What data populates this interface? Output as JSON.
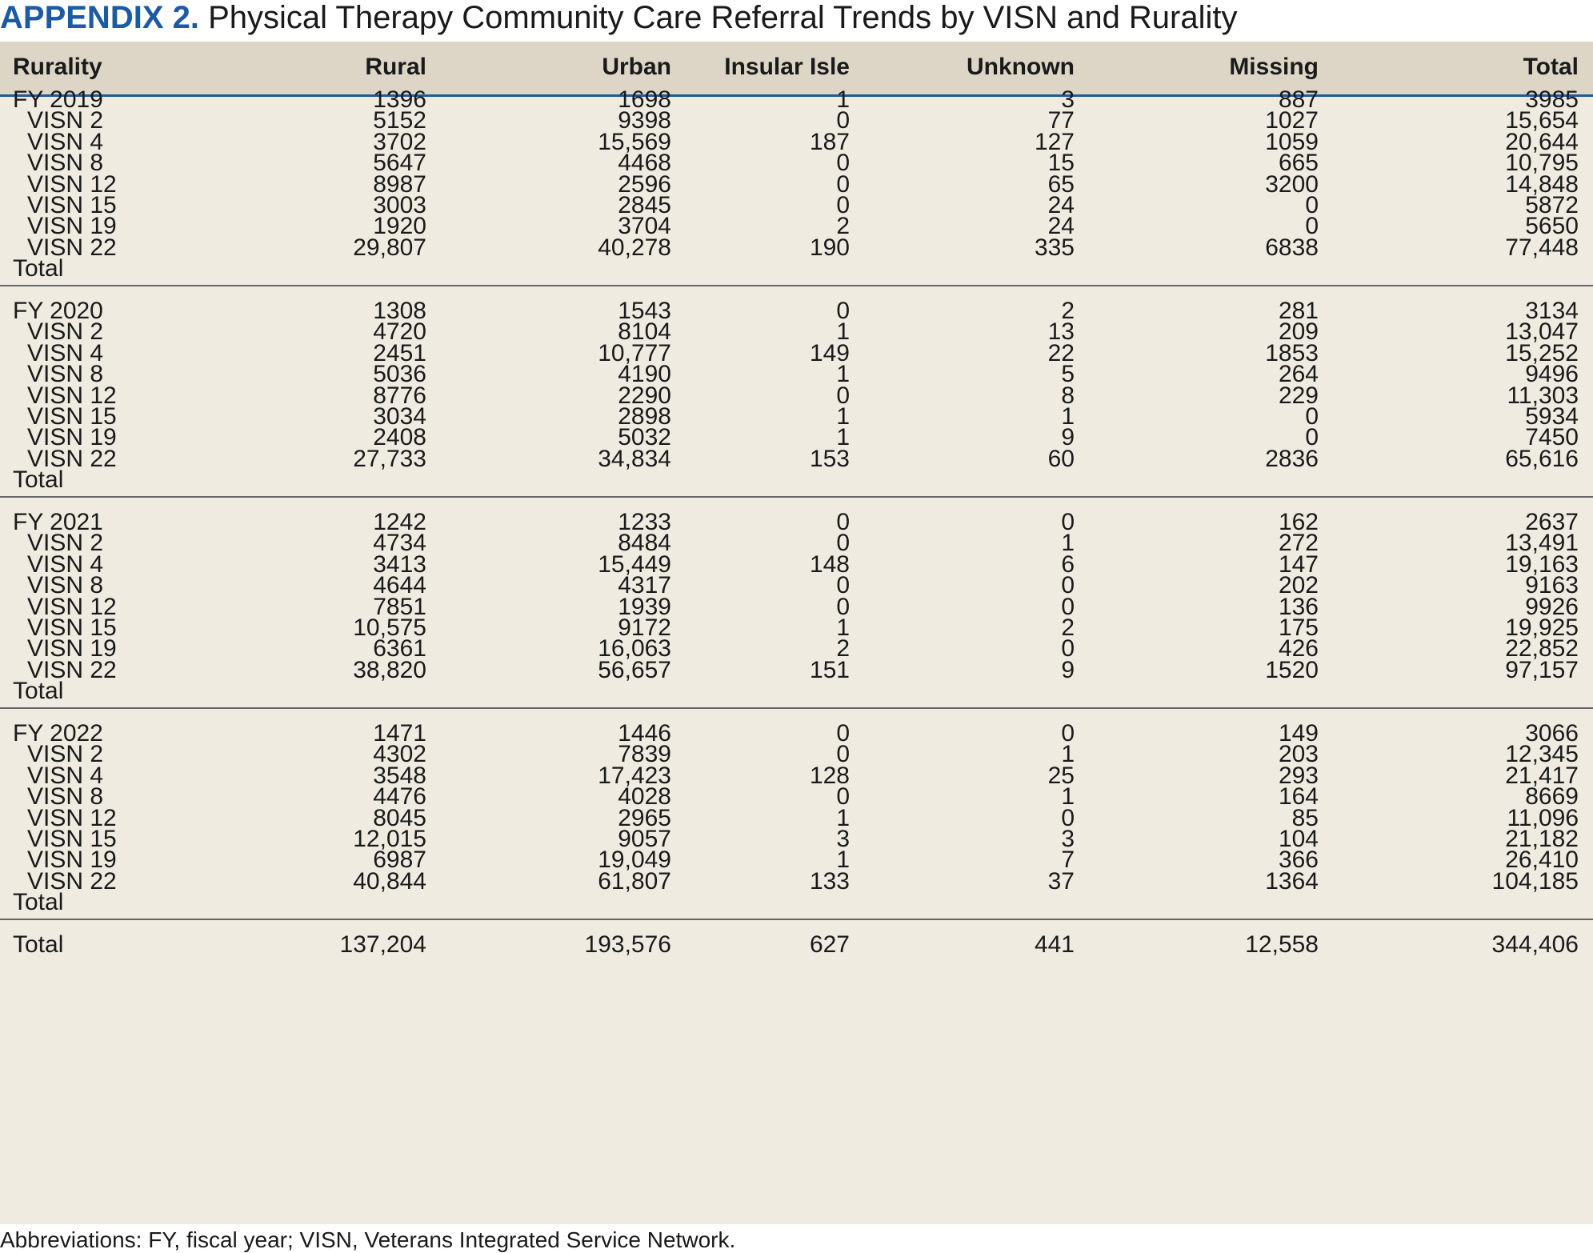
{
  "title": {
    "lead": "APPENDIX 2.",
    "text": " Physical Therapy Community Care Referral Trends by VISN and Rurality"
  },
  "columns": [
    "Rurality",
    "Rural",
    "Urban",
    "Insular Isle",
    "Unknown",
    "Missing",
    "Total"
  ],
  "groups": [
    {
      "rows": [
        [
          "FY 2019",
          "1396",
          "1698",
          "1",
          "3",
          "887",
          "3985"
        ],
        [
          "VISN 2",
          "5152",
          "9398",
          "0",
          "77",
          "1027",
          "15,654"
        ],
        [
          "VISN 4",
          "3702",
          "15,569",
          "187",
          "127",
          "1059",
          "20,644"
        ],
        [
          "VISN 8",
          "5647",
          "4468",
          "0",
          "15",
          "665",
          "10,795"
        ],
        [
          "VISN 12",
          "8987",
          "2596",
          "0",
          "65",
          "3200",
          "14,848"
        ],
        [
          "VISN 15",
          "3003",
          "2845",
          "0",
          "24",
          "0",
          "5872"
        ],
        [
          "VISN 19",
          "1920",
          "3704",
          "2",
          "24",
          "0",
          "5650"
        ],
        [
          "VISN 22",
          "29,807",
          "40,278",
          "190",
          "335",
          "6838",
          "77,448"
        ],
        [
          "Total",
          "",
          "",
          "",
          "",
          "",
          ""
        ]
      ]
    },
    {
      "rows": [
        [
          "FY 2020",
          "1308",
          "1543",
          "0",
          "2",
          "281",
          "3134"
        ],
        [
          "VISN 2",
          "4720",
          "8104",
          "1",
          "13",
          "209",
          "13,047"
        ],
        [
          "VISN 4",
          "2451",
          "10,777",
          "149",
          "22",
          "1853",
          "15,252"
        ],
        [
          "VISN 8",
          "5036",
          "4190",
          "1",
          "5",
          "264",
          "9496"
        ],
        [
          "VISN 12",
          "8776",
          "2290",
          "0",
          "8",
          "229",
          "11,303"
        ],
        [
          "VISN 15",
          "3034",
          "2898",
          "1",
          "1",
          "0",
          "5934"
        ],
        [
          "VISN 19",
          "2408",
          "5032",
          "1",
          "9",
          "0",
          "7450"
        ],
        [
          "VISN 22",
          "27,733",
          "34,834",
          "153",
          "60",
          "2836",
          "65,616"
        ],
        [
          "Total",
          "",
          "",
          "",
          "",
          "",
          ""
        ]
      ]
    },
    {
      "rows": [
        [
          "FY 2021",
          "1242",
          "1233",
          "0",
          "0",
          "162",
          "2637"
        ],
        [
          "VISN 2",
          "4734",
          "8484",
          "0",
          "1",
          "272",
          "13,491"
        ],
        [
          "VISN 4",
          "3413",
          "15,449",
          "148",
          "6",
          "147",
          "19,163"
        ],
        [
          "VISN 8",
          "4644",
          "4317",
          "0",
          "0",
          "202",
          "9163"
        ],
        [
          "VISN 12",
          "7851",
          "1939",
          "0",
          "0",
          "136",
          "9926"
        ],
        [
          "VISN 15",
          "10,575",
          "9172",
          "1",
          "2",
          "175",
          "19,925"
        ],
        [
          "VISN 19",
          "6361",
          "16,063",
          "2",
          "0",
          "426",
          "22,852"
        ],
        [
          "VISN 22",
          "38,820",
          "56,657",
          "151",
          "9",
          "1520",
          "97,157"
        ],
        [
          "Total",
          "",
          "",
          "",
          "",
          "",
          ""
        ]
      ]
    },
    {
      "rows": [
        [
          "FY 2022",
          "1471",
          "1446",
          "0",
          "0",
          "149",
          "3066"
        ],
        [
          "VISN 2",
          "4302",
          "7839",
          "0",
          "1",
          "203",
          "12,345"
        ],
        [
          "VISN 4",
          "3548",
          "17,423",
          "128",
          "25",
          "293",
          "21,417"
        ],
        [
          "VISN 8",
          "4476",
          "4028",
          "0",
          "1",
          "164",
          "8669"
        ],
        [
          "VISN 12",
          "8045",
          "2965",
          "1",
          "0",
          "85",
          "11,096"
        ],
        [
          "VISN 15",
          "12,015",
          "9057",
          "3",
          "3",
          "104",
          "21,182"
        ],
        [
          "VISN 19",
          "6987",
          "19,049",
          "1",
          "7",
          "366",
          "26,410"
        ],
        [
          "VISN 22",
          "40,844",
          "61,807",
          "133",
          "37",
          "1364",
          "104,185"
        ],
        [
          "Total",
          "",
          "",
          "",
          "",
          "",
          ""
        ]
      ]
    }
  ],
  "grand_total": [
    "Total",
    "137,204",
    "193,576",
    "627",
    "441",
    "12,558",
    "344,406"
  ],
  "footnote": "Abbreviations: FY, fiscal year; VISN, Veterans Integrated Service Network."
}
